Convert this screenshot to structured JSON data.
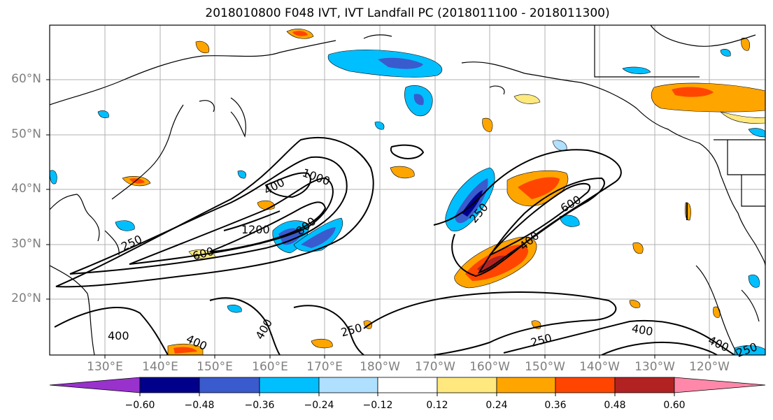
{
  "title": "2018010800 F048 IVT, IVT Landfall PC (2018011100 - 2018011300)",
  "lat_labels": [
    "60°N",
    "50°N",
    "40°N",
    "30°N",
    "20°N"
  ],
  "lon_labels": [
    "130°E",
    "140°E",
    "150°E",
    "160°E",
    "170°E",
    "180°W",
    "170°W",
    "160°W",
    "150°W",
    "140°W",
    "130°W",
    "120°W"
  ],
  "contour_labels": [
    "250",
    "400",
    "600",
    "800",
    "1000",
    "1200",
    "250",
    "400",
    "600",
    "250",
    "400",
    "400",
    "400",
    "400",
    "250",
    "400",
    "250"
  ],
  "colorbar": {
    "ticks": [
      "−0.60",
      "−0.48",
      "−0.36",
      "−0.24",
      "−0.12",
      "0.12",
      "0.24",
      "0.36",
      "0.48",
      "0.60"
    ],
    "colors": [
      "#9932cc",
      "#00008b",
      "#3a5bcd",
      "#00bfff",
      "#b0e0ff",
      "#ffffff",
      "#ffe97f",
      "#ffa500",
      "#ff4500",
      "#b22222",
      "#ff88aa"
    ]
  }
}
